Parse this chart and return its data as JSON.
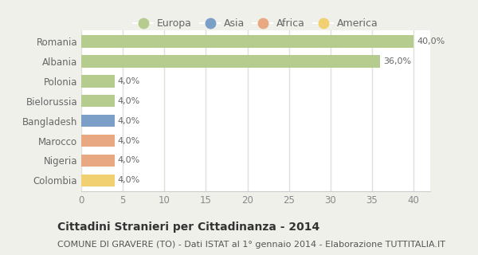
{
  "categories": [
    "Romania",
    "Albania",
    "Polonia",
    "Bielorussia",
    "Bangladesh",
    "Marocco",
    "Nigeria",
    "Colombia"
  ],
  "values": [
    40.0,
    36.0,
    4.0,
    4.0,
    4.0,
    4.0,
    4.0,
    4.0
  ],
  "bar_colors": [
    "#b5cc8e",
    "#b5cc8e",
    "#b5cc8e",
    "#b5cc8e",
    "#7b9fc7",
    "#e8a882",
    "#e8a882",
    "#f0d070"
  ],
  "labels": [
    "40,0%",
    "36,0%",
    "4,0%",
    "4,0%",
    "4,0%",
    "4,0%",
    "4,0%",
    "4,0%"
  ],
  "xlim": [
    0,
    42
  ],
  "xticks": [
    0,
    5,
    10,
    15,
    20,
    25,
    30,
    35,
    40
  ],
  "legend_labels": [
    "Europa",
    "Asia",
    "Africa",
    "America"
  ],
  "legend_colors": [
    "#b5cc8e",
    "#7b9fc7",
    "#e8a882",
    "#f0d070"
  ],
  "title": "Cittadini Stranieri per Cittadinanza - 2014",
  "subtitle": "COMUNE DI GRAVERE (TO) - Dati ISTAT al 1° gennaio 2014 - Elaborazione TUTTITALIA.IT",
  "outer_bg": "#f0f0eb",
  "plot_bg": "#ffffff",
  "grid_color": "#e0e0d8",
  "title_fontsize": 10,
  "subtitle_fontsize": 8,
  "label_fontsize": 8,
  "tick_fontsize": 8.5,
  "legend_fontsize": 9
}
